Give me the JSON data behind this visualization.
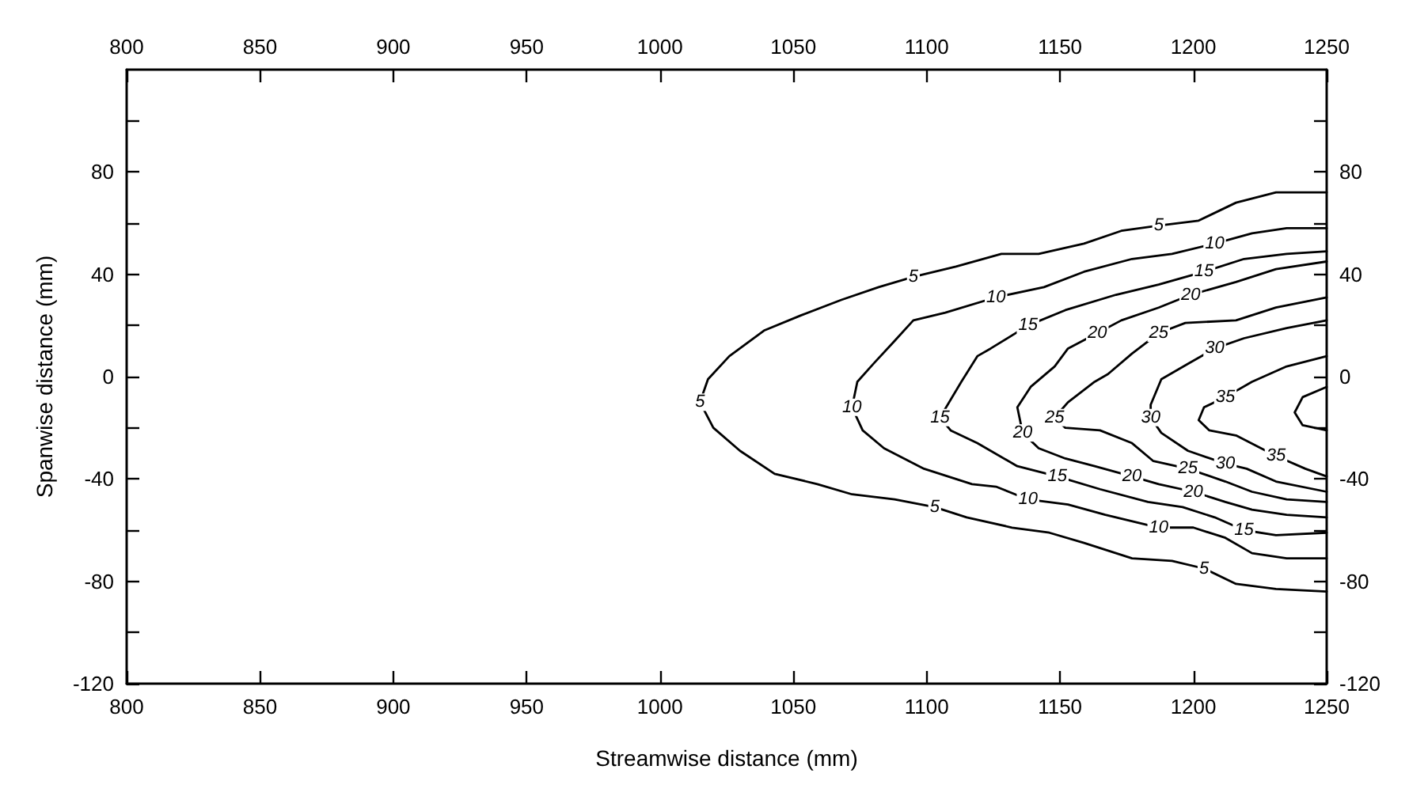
{
  "chart_data": {
    "type": "line",
    "xlabel": "Streamwise distance (mm)",
    "ylabel": "Spanwise distance (mm)",
    "xlim": [
      800,
      1250
    ],
    "xticks": [
      800,
      850,
      900,
      950,
      1000,
      1050,
      1100,
      1150,
      1200,
      1250
    ],
    "x2lim": [
      800,
      1250
    ],
    "x2ticks": [
      800,
      850,
      900,
      950,
      1000,
      1050,
      1100,
      1150,
      1200,
      1250
    ],
    "ylim": [
      -120,
      120
    ],
    "yticks": [
      -120,
      {
        "value": -100,
        "label": null
      },
      -80,
      {
        "value": -60,
        "label": null
      },
      -40,
      {
        "value": -20,
        "label": null
      },
      0,
      {
        "value": 20,
        "label": null
      },
      40,
      {
        "value": 60,
        "label": null
      },
      80,
      {
        "value": 100,
        "label": null
      }
    ],
    "y2lim": [
      -120,
      120
    ],
    "y2ticks": [
      -120,
      {
        "value": -100,
        "label": null
      },
      -80,
      {
        "value": -60,
        "label": null
      },
      -40,
      {
        "value": -20,
        "label": null
      },
      0,
      {
        "value": 20,
        "label": null
      },
      40,
      {
        "value": 60,
        "label": null
      },
      80,
      {
        "value": 100,
        "label": null
      }
    ],
    "grid": false,
    "legend": false,
    "series": [
      {
        "name": "5",
        "color": "#000000",
        "x": [
          1250,
          1231,
          1216,
          1202,
          1187,
          1173,
          1159,
          1142,
          1128,
          1111,
          1095,
          1082,
          1068,
          1053,
          1039,
          1026,
          1018,
          1015,
          1020,
          1030,
          1043,
          1059,
          1072,
          1088,
          1103,
          1115,
          1132,
          1146,
          1159,
          1177,
          1192,
          1204,
          1216,
          1231,
          1250
        ],
        "values": [
          72,
          72,
          68,
          61,
          59,
          57,
          52,
          48,
          48,
          43,
          39,
          35,
          30,
          24,
          18,
          8,
          -1,
          -10,
          -20,
          -29,
          -38,
          -42,
          -46,
          -48,
          -51,
          -55,
          -59,
          -61,
          -65,
          -71,
          -72,
          -75,
          -81,
          -83,
          -84
        ]
      },
      {
        "name": "10",
        "color": "#000000",
        "x": [
          1250,
          1235,
          1222,
          1208,
          1192,
          1177,
          1159,
          1144,
          1126,
          1107,
          1095,
          1088,
          1080,
          1074,
          1072,
          1076,
          1084,
          1099,
          1117,
          1126,
          1138,
          1153,
          1167,
          1187,
          1200,
          1212,
          1222,
          1235,
          1250
        ],
        "values": [
          58,
          58,
          56,
          52,
          48,
          46,
          41,
          35,
          31,
          25,
          22,
          14,
          5,
          -2,
          -12,
          -21,
          -28,
          -36,
          -42,
          -43,
          -48,
          -50,
          -54,
          -59,
          -59,
          -63,
          -69,
          -71,
          -71
        ]
      },
      {
        "name": "15",
        "color": "#000000",
        "x": [
          1250,
          1235,
          1219,
          1204,
          1187,
          1171,
          1152,
          1138,
          1124,
          1119,
          1113,
          1105,
          1109,
          1119,
          1134,
          1149,
          1165,
          1183,
          1196,
          1208,
          1219,
          1231,
          1250
        ],
        "values": [
          49,
          48,
          46,
          41,
          36,
          32,
          26,
          20,
          11,
          8,
          -2,
          -16,
          -21,
          -26,
          -35,
          -39,
          -44,
          -49,
          -51,
          -55,
          -60,
          -62,
          -61
        ]
      },
      {
        "name": "20",
        "color": "#000000",
        "x": [
          1250,
          1231,
          1216,
          1199,
          1187,
          1173,
          1164,
          1153,
          1148,
          1139,
          1134,
          1136,
          1142,
          1152,
          1163,
          1177,
          1187,
          1200,
          1212,
          1222,
          1235,
          1250
        ],
        "values": [
          45,
          42,
          37,
          32,
          27,
          22,
          17,
          11,
          4,
          -4,
          -12,
          -22,
          -28,
          -32,
          -35,
          -39,
          -42,
          -45,
          -49,
          -52,
          -54,
          -55
        ]
      },
      {
        "name": "25",
        "color": "#000000",
        "x": [
          1250,
          1231,
          1216,
          1197,
          1187,
          1177,
          1168,
          1163,
          1153,
          1148,
          1152,
          1165,
          1177,
          1185,
          1198,
          1212,
          1222,
          1235,
          1250
        ],
        "values": [
          31,
          27,
          22,
          21,
          17,
          9,
          1,
          -2,
          -10,
          -16,
          -20,
          -21,
          -26,
          -33,
          -36,
          -41,
          -45,
          -48,
          -49
        ]
      },
      {
        "name": "30",
        "color": "#000000",
        "x": [
          1250,
          1235,
          1219,
          1208,
          1198,
          1188,
          1184,
          1184,
          1188,
          1198,
          1212,
          1220,
          1231,
          1250
        ],
        "values": [
          22,
          19,
          15,
          11,
          5,
          -1,
          -11,
          -16,
          -22,
          -29,
          -34,
          -36,
          -41,
          -45
        ]
      },
      {
        "name": "35",
        "color": "#000000",
        "x": [
          1250,
          1235,
          1222,
          1212,
          1204,
          1202,
          1206,
          1216,
          1231,
          1242,
          1250
        ],
        "values": [
          8,
          4,
          -2,
          -8,
          -12,
          -17,
          -21,
          -23,
          -31,
          -36,
          -39
        ]
      },
      {
        "color": "#000000",
        "x": [
          1250,
          1241,
          1238,
          1241,
          1250
        ],
        "values": [
          -4,
          -8,
          -14,
          -19,
          -21
        ]
      }
    ]
  }
}
